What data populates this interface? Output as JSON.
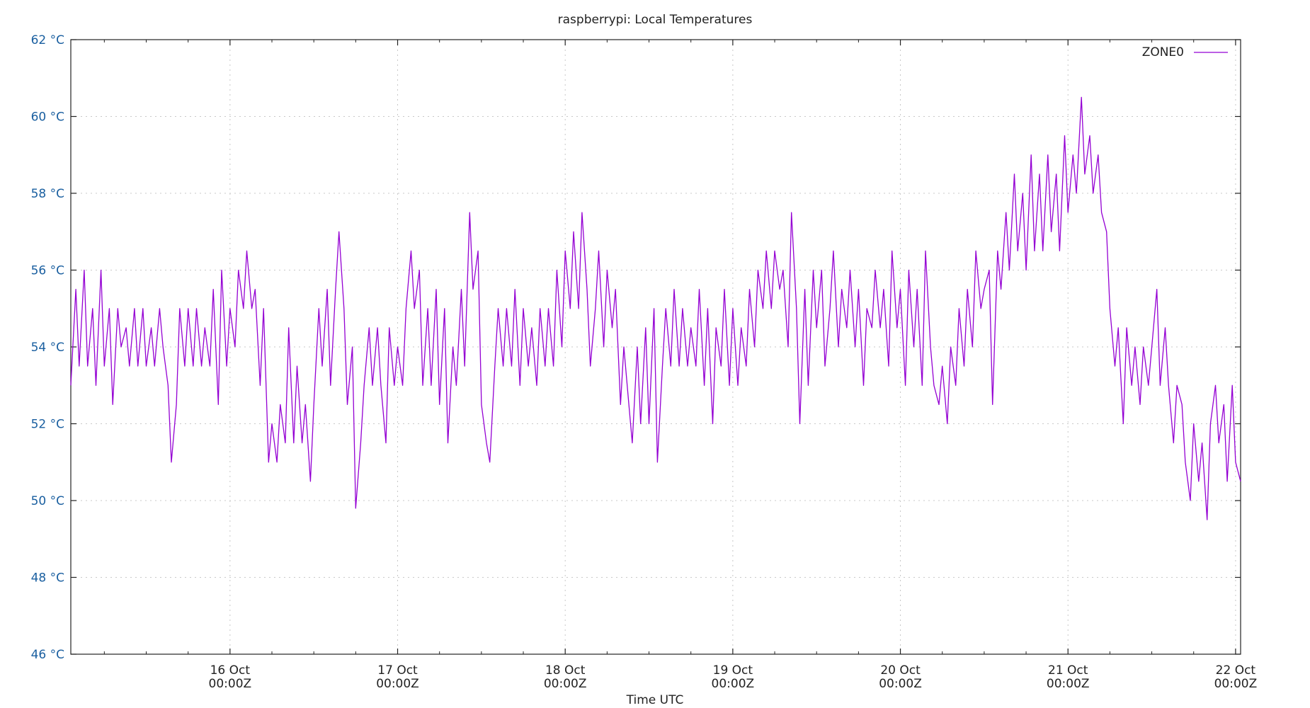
{
  "chart_data": {
    "type": "line",
    "title": "raspberrypi: Local Temperatures",
    "xlabel": "Time UTC",
    "ylabel": "",
    "x_unit": "days (Oct)",
    "xlim": [
      15.05,
      22.03
    ],
    "ylim": [
      46,
      62
    ],
    "y_ticks": [
      {
        "value": 62,
        "label": "62 °C"
      },
      {
        "value": 60,
        "label": "60 °C"
      },
      {
        "value": 58,
        "label": "58 °C"
      },
      {
        "value": 56,
        "label": "56 °C"
      },
      {
        "value": 54,
        "label": "54 °C"
      },
      {
        "value": 52,
        "label": "52 °C"
      },
      {
        "value": 50,
        "label": "50 °C"
      },
      {
        "value": 48,
        "label": "48 °C"
      },
      {
        "value": 46,
        "label": "46 °C"
      }
    ],
    "x_ticks": [
      {
        "value": 16,
        "line1": "16 Oct",
        "line2": "00:00Z"
      },
      {
        "value": 17,
        "line1": "17 Oct",
        "line2": "00:00Z"
      },
      {
        "value": 18,
        "line1": "18 Oct",
        "line2": "00:00Z"
      },
      {
        "value": 19,
        "line1": "19 Oct",
        "line2": "00:00Z"
      },
      {
        "value": 20,
        "line1": "20 Oct",
        "line2": "00:00Z"
      },
      {
        "value": 21,
        "line1": "21 Oct",
        "line2": "00:00Z"
      },
      {
        "value": 22,
        "line1": "22 Oct",
        "line2": "00:00Z"
      }
    ],
    "grid": true,
    "legend": "top-right",
    "series": [
      {
        "name": "ZONE0",
        "color": "#9400d3",
        "points": [
          [
            15.05,
            53.0
          ],
          [
            15.08,
            55.5
          ],
          [
            15.1,
            53.5
          ],
          [
            15.13,
            56.0
          ],
          [
            15.15,
            53.5
          ],
          [
            15.18,
            55.0
          ],
          [
            15.2,
            53.0
          ],
          [
            15.23,
            56.0
          ],
          [
            15.25,
            53.5
          ],
          [
            15.28,
            55.0
          ],
          [
            15.3,
            52.5
          ],
          [
            15.33,
            55.0
          ],
          [
            15.35,
            54.0
          ],
          [
            15.38,
            54.5
          ],
          [
            15.4,
            53.5
          ],
          [
            15.43,
            55.0
          ],
          [
            15.45,
            53.5
          ],
          [
            15.48,
            55.0
          ],
          [
            15.5,
            53.5
          ],
          [
            15.53,
            54.5
          ],
          [
            15.55,
            53.5
          ],
          [
            15.58,
            55.0
          ],
          [
            15.6,
            54.0
          ],
          [
            15.63,
            53.0
          ],
          [
            15.65,
            51.0
          ],
          [
            15.68,
            52.5
          ],
          [
            15.7,
            55.0
          ],
          [
            15.73,
            53.5
          ],
          [
            15.75,
            55.0
          ],
          [
            15.78,
            53.5
          ],
          [
            15.8,
            55.0
          ],
          [
            15.83,
            53.5
          ],
          [
            15.85,
            54.5
          ],
          [
            15.88,
            53.5
          ],
          [
            15.9,
            55.5
          ],
          [
            15.93,
            52.5
          ],
          [
            15.95,
            56.0
          ],
          [
            15.98,
            53.5
          ],
          [
            16.0,
            55.0
          ],
          [
            16.03,
            54.0
          ],
          [
            16.05,
            56.0
          ],
          [
            16.08,
            55.0
          ],
          [
            16.1,
            56.5
          ],
          [
            16.13,
            55.0
          ],
          [
            16.15,
            55.5
          ],
          [
            16.18,
            53.0
          ],
          [
            16.2,
            55.0
          ],
          [
            16.23,
            51.0
          ],
          [
            16.25,
            52.0
          ],
          [
            16.28,
            51.0
          ],
          [
            16.3,
            52.5
          ],
          [
            16.33,
            51.5
          ],
          [
            16.35,
            54.5
          ],
          [
            16.38,
            51.5
          ],
          [
            16.4,
            53.5
          ],
          [
            16.43,
            51.5
          ],
          [
            16.45,
            52.5
          ],
          [
            16.48,
            50.5
          ],
          [
            16.5,
            52.5
          ],
          [
            16.53,
            55.0
          ],
          [
            16.55,
            53.5
          ],
          [
            16.58,
            55.5
          ],
          [
            16.6,
            53.0
          ],
          [
            16.63,
            55.5
          ],
          [
            16.65,
            57.0
          ],
          [
            16.68,
            55.0
          ],
          [
            16.7,
            52.5
          ],
          [
            16.73,
            54.0
          ],
          [
            16.75,
            49.8
          ],
          [
            16.78,
            51.5
          ],
          [
            16.8,
            53.0
          ],
          [
            16.83,
            54.5
          ],
          [
            16.85,
            53.0
          ],
          [
            16.88,
            54.5
          ],
          [
            16.9,
            53.0
          ],
          [
            16.93,
            51.5
          ],
          [
            16.95,
            54.5
          ],
          [
            16.98,
            53.0
          ],
          [
            17.0,
            54.0
          ],
          [
            17.03,
            53.0
          ],
          [
            17.05,
            55.0
          ],
          [
            17.08,
            56.5
          ],
          [
            17.1,
            55.0
          ],
          [
            17.13,
            56.0
          ],
          [
            17.15,
            53.0
          ],
          [
            17.18,
            55.0
          ],
          [
            17.2,
            53.0
          ],
          [
            17.23,
            55.5
          ],
          [
            17.25,
            52.5
          ],
          [
            17.28,
            55.0
          ],
          [
            17.3,
            51.5
          ],
          [
            17.33,
            54.0
          ],
          [
            17.35,
            53.0
          ],
          [
            17.38,
            55.5
          ],
          [
            17.4,
            53.5
          ],
          [
            17.43,
            57.5
          ],
          [
            17.45,
            55.5
          ],
          [
            17.48,
            56.5
          ],
          [
            17.5,
            52.5
          ],
          [
            17.53,
            51.5
          ],
          [
            17.55,
            51.0
          ],
          [
            17.58,
            53.5
          ],
          [
            17.6,
            55.0
          ],
          [
            17.63,
            53.5
          ],
          [
            17.65,
            55.0
          ],
          [
            17.68,
            53.5
          ],
          [
            17.7,
            55.5
          ],
          [
            17.73,
            53.0
          ],
          [
            17.75,
            55.0
          ],
          [
            17.78,
            53.5
          ],
          [
            17.8,
            54.5
          ],
          [
            17.83,
            53.0
          ],
          [
            17.85,
            55.0
          ],
          [
            17.88,
            53.5
          ],
          [
            17.9,
            55.0
          ],
          [
            17.93,
            53.5
          ],
          [
            17.95,
            56.0
          ],
          [
            17.98,
            54.0
          ],
          [
            18.0,
            56.5
          ],
          [
            18.03,
            55.0
          ],
          [
            18.05,
            57.0
          ],
          [
            18.08,
            55.0
          ],
          [
            18.1,
            57.5
          ],
          [
            18.13,
            55.5
          ],
          [
            18.15,
            53.5
          ],
          [
            18.18,
            55.0
          ],
          [
            18.2,
            56.5
          ],
          [
            18.23,
            54.0
          ],
          [
            18.25,
            56.0
          ],
          [
            18.28,
            54.5
          ],
          [
            18.3,
            55.5
          ],
          [
            18.33,
            52.5
          ],
          [
            18.35,
            54.0
          ],
          [
            18.38,
            52.5
          ],
          [
            18.4,
            51.5
          ],
          [
            18.43,
            54.0
          ],
          [
            18.45,
            52.0
          ],
          [
            18.48,
            54.5
          ],
          [
            18.5,
            52.0
          ],
          [
            18.53,
            55.0
          ],
          [
            18.55,
            51.0
          ],
          [
            18.58,
            53.5
          ],
          [
            18.6,
            55.0
          ],
          [
            18.63,
            53.5
          ],
          [
            18.65,
            55.5
          ],
          [
            18.68,
            53.5
          ],
          [
            18.7,
            55.0
          ],
          [
            18.73,
            53.5
          ],
          [
            18.75,
            54.5
          ],
          [
            18.78,
            53.5
          ],
          [
            18.8,
            55.5
          ],
          [
            18.83,
            53.0
          ],
          [
            18.85,
            55.0
          ],
          [
            18.88,
            52.0
          ],
          [
            18.9,
            54.5
          ],
          [
            18.93,
            53.5
          ],
          [
            18.95,
            55.5
          ],
          [
            18.98,
            53.0
          ],
          [
            19.0,
            55.0
          ],
          [
            19.03,
            53.0
          ],
          [
            19.05,
            54.5
          ],
          [
            19.08,
            53.5
          ],
          [
            19.1,
            55.5
          ],
          [
            19.13,
            54.0
          ],
          [
            19.15,
            56.0
          ],
          [
            19.18,
            55.0
          ],
          [
            19.2,
            56.5
          ],
          [
            19.23,
            55.0
          ],
          [
            19.25,
            56.5
          ],
          [
            19.28,
            55.5
          ],
          [
            19.3,
            56.0
          ],
          [
            19.33,
            54.0
          ],
          [
            19.35,
            57.5
          ],
          [
            19.38,
            55.0
          ],
          [
            19.4,
            52.0
          ],
          [
            19.43,
            55.5
          ],
          [
            19.45,
            53.0
          ],
          [
            19.48,
            56.0
          ],
          [
            19.5,
            54.5
          ],
          [
            19.53,
            56.0
          ],
          [
            19.55,
            53.5
          ],
          [
            19.58,
            55.0
          ],
          [
            19.6,
            56.5
          ],
          [
            19.63,
            54.0
          ],
          [
            19.65,
            55.5
          ],
          [
            19.68,
            54.5
          ],
          [
            19.7,
            56.0
          ],
          [
            19.73,
            54.0
          ],
          [
            19.75,
            55.5
          ],
          [
            19.78,
            53.0
          ],
          [
            19.8,
            55.0
          ],
          [
            19.83,
            54.5
          ],
          [
            19.85,
            56.0
          ],
          [
            19.88,
            54.5
          ],
          [
            19.9,
            55.5
          ],
          [
            19.93,
            53.5
          ],
          [
            19.95,
            56.5
          ],
          [
            19.98,
            54.5
          ],
          [
            20.0,
            55.5
          ],
          [
            20.03,
            53.0
          ],
          [
            20.05,
            56.0
          ],
          [
            20.08,
            54.0
          ],
          [
            20.1,
            55.5
          ],
          [
            20.13,
            53.0
          ],
          [
            20.15,
            56.5
          ],
          [
            20.18,
            54.0
          ],
          [
            20.2,
            53.0
          ],
          [
            20.23,
            52.5
          ],
          [
            20.25,
            53.5
          ],
          [
            20.28,
            52.0
          ],
          [
            20.3,
            54.0
          ],
          [
            20.33,
            53.0
          ],
          [
            20.35,
            55.0
          ],
          [
            20.38,
            53.5
          ],
          [
            20.4,
            55.5
          ],
          [
            20.43,
            54.0
          ],
          [
            20.45,
            56.5
          ],
          [
            20.48,
            55.0
          ],
          [
            20.5,
            55.5
          ],
          [
            20.53,
            56.0
          ],
          [
            20.55,
            52.5
          ],
          [
            20.58,
            56.5
          ],
          [
            20.6,
            55.5
          ],
          [
            20.63,
            57.5
          ],
          [
            20.65,
            56.0
          ],
          [
            20.68,
            58.5
          ],
          [
            20.7,
            56.5
          ],
          [
            20.73,
            58.0
          ],
          [
            20.75,
            56.0
          ],
          [
            20.78,
            59.0
          ],
          [
            20.8,
            56.5
          ],
          [
            20.83,
            58.5
          ],
          [
            20.85,
            56.5
          ],
          [
            20.88,
            59.0
          ],
          [
            20.9,
            57.0
          ],
          [
            20.93,
            58.5
          ],
          [
            20.95,
            56.5
          ],
          [
            20.98,
            59.5
          ],
          [
            21.0,
            57.5
          ],
          [
            21.03,
            59.0
          ],
          [
            21.05,
            58.0
          ],
          [
            21.08,
            60.5
          ],
          [
            21.1,
            58.5
          ],
          [
            21.13,
            59.5
          ],
          [
            21.15,
            58.0
          ],
          [
            21.18,
            59.0
          ],
          [
            21.2,
            57.5
          ],
          [
            21.23,
            57.0
          ],
          [
            21.25,
            55.0
          ],
          [
            21.28,
            53.5
          ],
          [
            21.3,
            54.5
          ],
          [
            21.33,
            52.0
          ],
          [
            21.35,
            54.5
          ],
          [
            21.38,
            53.0
          ],
          [
            21.4,
            54.0
          ],
          [
            21.43,
            52.5
          ],
          [
            21.45,
            54.0
          ],
          [
            21.48,
            53.0
          ],
          [
            21.5,
            54.0
          ],
          [
            21.53,
            55.5
          ],
          [
            21.55,
            53.0
          ],
          [
            21.58,
            54.5
          ],
          [
            21.6,
            53.0
          ],
          [
            21.63,
            51.5
          ],
          [
            21.65,
            53.0
          ],
          [
            21.68,
            52.5
          ],
          [
            21.7,
            51.0
          ],
          [
            21.73,
            50.0
          ],
          [
            21.75,
            52.0
          ],
          [
            21.78,
            50.5
          ],
          [
            21.8,
            51.5
          ],
          [
            21.83,
            49.5
          ],
          [
            21.85,
            52.0
          ],
          [
            21.88,
            53.0
          ],
          [
            21.9,
            51.5
          ],
          [
            21.93,
            52.5
          ],
          [
            21.95,
            50.5
          ],
          [
            21.98,
            53.0
          ],
          [
            22.0,
            51.0
          ],
          [
            22.03,
            50.5
          ]
        ]
      }
    ]
  }
}
